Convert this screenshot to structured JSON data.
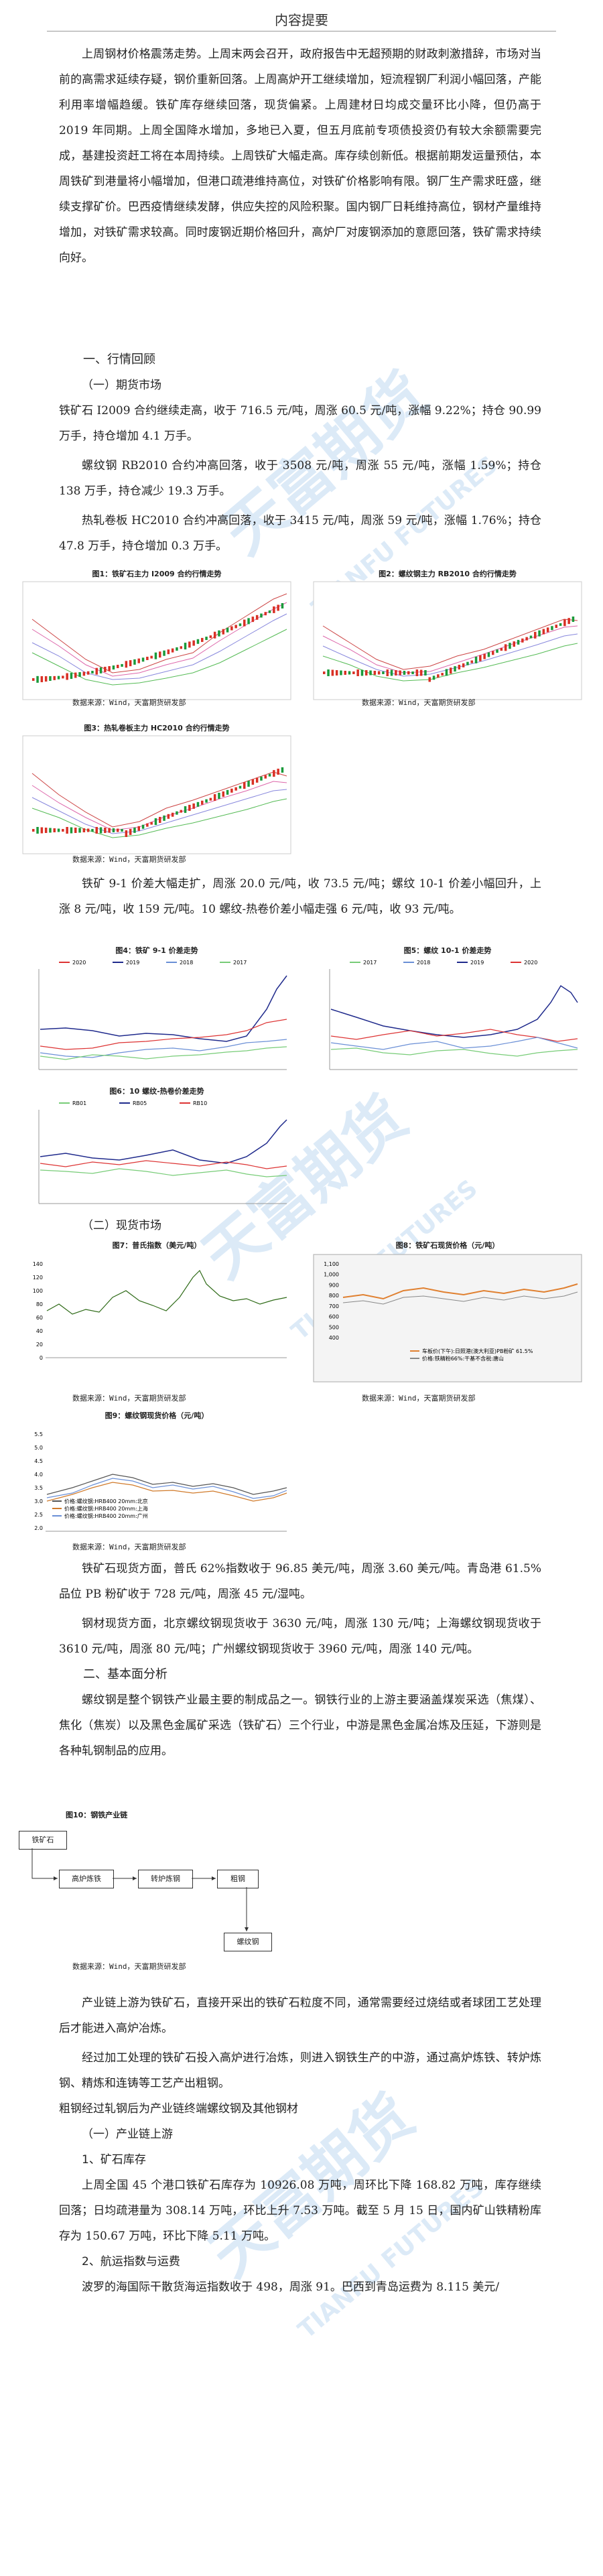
{
  "header": {
    "title": "内容提要"
  },
  "summary": [
    "上周钢材价格震荡走势。上周末两会召开，政府报告中无超预期的财政刺激措辞，市场对当前的高需求延续存疑，钢价重新回落。上周高炉开工继续增加，短流程钢厂利润小幅回落，产能利用率增幅趋缓。铁矿库存继续回落，现货偏紧。上周建材日均成交量环比小降，但仍高于2019 年同期。上周全国降水增加，多地已入夏，但五月底前专项债投资仍有较大余额需要完成，基建投资赶工将在本周持续。上周铁矿大幅走高。库存续创新低。根据前期发运量预估，本周铁矿到港量将小幅增加，但港口疏港维持高位，对铁矿价格影响有限。钢厂生产需求旺盛，继续支撑矿价。巴西疫情继续发酵，供应失控的风险积聚。国内钢厂日耗维持高位，钢材产量维持增加，对铁矿需求较高。同时废钢近期价格回升，高炉厂对废钢添加的意愿回落，铁矿需求持续向好。"
  ],
  "s1": {
    "heading": "一、行情回顾",
    "sub1": "（一）期货市场"
  },
  "futures": [
    "铁矿石 I2009 合约继续走高，收于 716.5 元/吨，周涨 60.5 元/吨，涨幅 9.22%；持仓 90.99 万手，持仓增加 4.1 万手。",
    "螺纹钢 RB2010 合约冲高回落，收于 3508 元/吨，周涨 55 元/吨，涨幅 1.59%；持仓 138 万手，持仓减少 19.3 万手。",
    "热轧卷板 HC2010 合约冲高回落，收于 3415 元/吨，周涨 59 元/吨，涨幅 1.76%；持仓 47.8 万手，持仓增加 0.3 万手。"
  ],
  "figures": {
    "f1": "图1：铁矿石主力 I2009 合约行情走势",
    "f2": "图2：螺纹钢主力 RB2010 合约行情走势",
    "f3": "图3：热轧卷板主力 HC2010 合约行情走势",
    "f4": "图4：铁矿 9-1 价差走势",
    "f5": "图5：螺纹 10-1 价差走势",
    "f6": "图6：10 螺纹-热卷价差走势",
    "f7": "图7：普氏指数（美元/吨）",
    "f8": "图8：铁矿石现货价格（元/吨）",
    "f9": "图9：螺纹钢现货价格（元/吨）",
    "f10": "图10：钢铁产业链",
    "source": "数据来源：Wind，天富期货研发部"
  },
  "spread_text": "铁矿 9-1 价差大幅走扩，周涨 20.0 元/吨，收 73.5 元/吨；螺纹 10-1 价差小幅回升，上涨 8 元/吨，收 159 元/吨。10 螺纹-热卷价差小幅走强 6 元/吨，收 93 元/吨。",
  "s1b": {
    "sub2": "（二）现货市场"
  },
  "spot": [
    "铁矿石现货方面，普氏 62%指数收于 96.85 美元/吨，周涨 3.60 美元/吨。青岛港 61.5%品位 PB 粉矿收于 728 元/吨，周涨 45 元/湿吨。",
    "钢材现货方面，北京螺纹钢现货收于 3630 元/吨，周涨 130 元/吨；上海螺纹钢现货收于 3610 元/吨，周涨 80 元/吨；广州螺纹钢现货收于 3960 元/吨，周涨 140 元/吨。"
  ],
  "s2": {
    "heading": "二、基本面分析",
    "intro": "螺纹钢是整个钢铁产业最主要的制成品之一。钢铁行业的上游主要涵盖煤炭采选（焦煤）、焦化（焦炭）以及黑色金属矿采选（铁矿石）三个行业，中游是黑色金属冶炼及压延，下游则是各种轧钢制品的应用。",
    "chain1": "产业链上游为铁矿石，直接开采出的铁矿石粒度不同，通常需要经过烧结或者球团工艺处理后才能进入高炉冶炼。",
    "chain2": "经过加工处理的铁矿石投入高炉进行冶炼，则进入钢铁生产的中游，通过高炉炼铁、转炉炼钢、精炼和连铸等工艺产出粗钢。",
    "chain3": "粗钢经过轧钢后为产业链终端螺纹钢及其他钢材",
    "sub1": "（一）产业链上游",
    "item1": "1、矿石库存",
    "inventory": "上周全国 45 个港口铁矿石库存为 10926.08 万吨，周环比下降 168.82 万吨，库存继续回落；日均疏港量为 308.14 万吨，环比上升 7.53 万吨。截至 5 月 15 日，国内矿山铁精粉库存为 150.67 万吨，环比下降 5.11 万吨。",
    "item2": "2、航运指数与运费",
    "freight": "波罗的海国际干散货海运指数收于 498，周涨 91。巴西到青岛运费为 8.115 美元/"
  },
  "flow": {
    "ore": "铁矿石",
    "bf": "高炉炼铁",
    "bof": "转炉炼钢",
    "crude": "粗钢",
    "rebar": "螺纹钢"
  },
  "charts_text": {
    "legend_years": [
      "2020",
      "2019",
      "2018",
      "2017"
    ],
    "legend_rb_hc": [
      "RB01",
      "RB05",
      "RB10"
    ],
    "fig8_legend": [
      "车板价(下午):日照港(澳大利亚)PB粉矿 61.5%",
      "价格:铁精粉66%:干基不含税:唐山"
    ],
    "fig9_legend": [
      "价格:螺纹钢:HRB400 20mm:北京",
      "价格:螺纹钢:HRB400 20mm:上海",
      "价格:螺纹钢:HRB400 20mm:广州"
    ],
    "fig7_y": [
      "140",
      "120",
      "100",
      "80",
      "60",
      "40",
      "20",
      "0"
    ],
    "fig8_y": [
      "1,100",
      "1,000",
      "900",
      "800",
      "700",
      "600",
      "500",
      "400"
    ],
    "fig9_y": [
      "5.5",
      "5.0",
      "4.5",
      "4.0",
      "3.5",
      "3.0",
      "2.5",
      "2.0"
    ]
  },
  "watermark": {
    "cn": "天富期货",
    "en": "TIANFU FUTURES"
  },
  "colors": {
    "up": "#d93025",
    "down": "#1a9a3a",
    "brand_blue": "#2b7fd1"
  }
}
